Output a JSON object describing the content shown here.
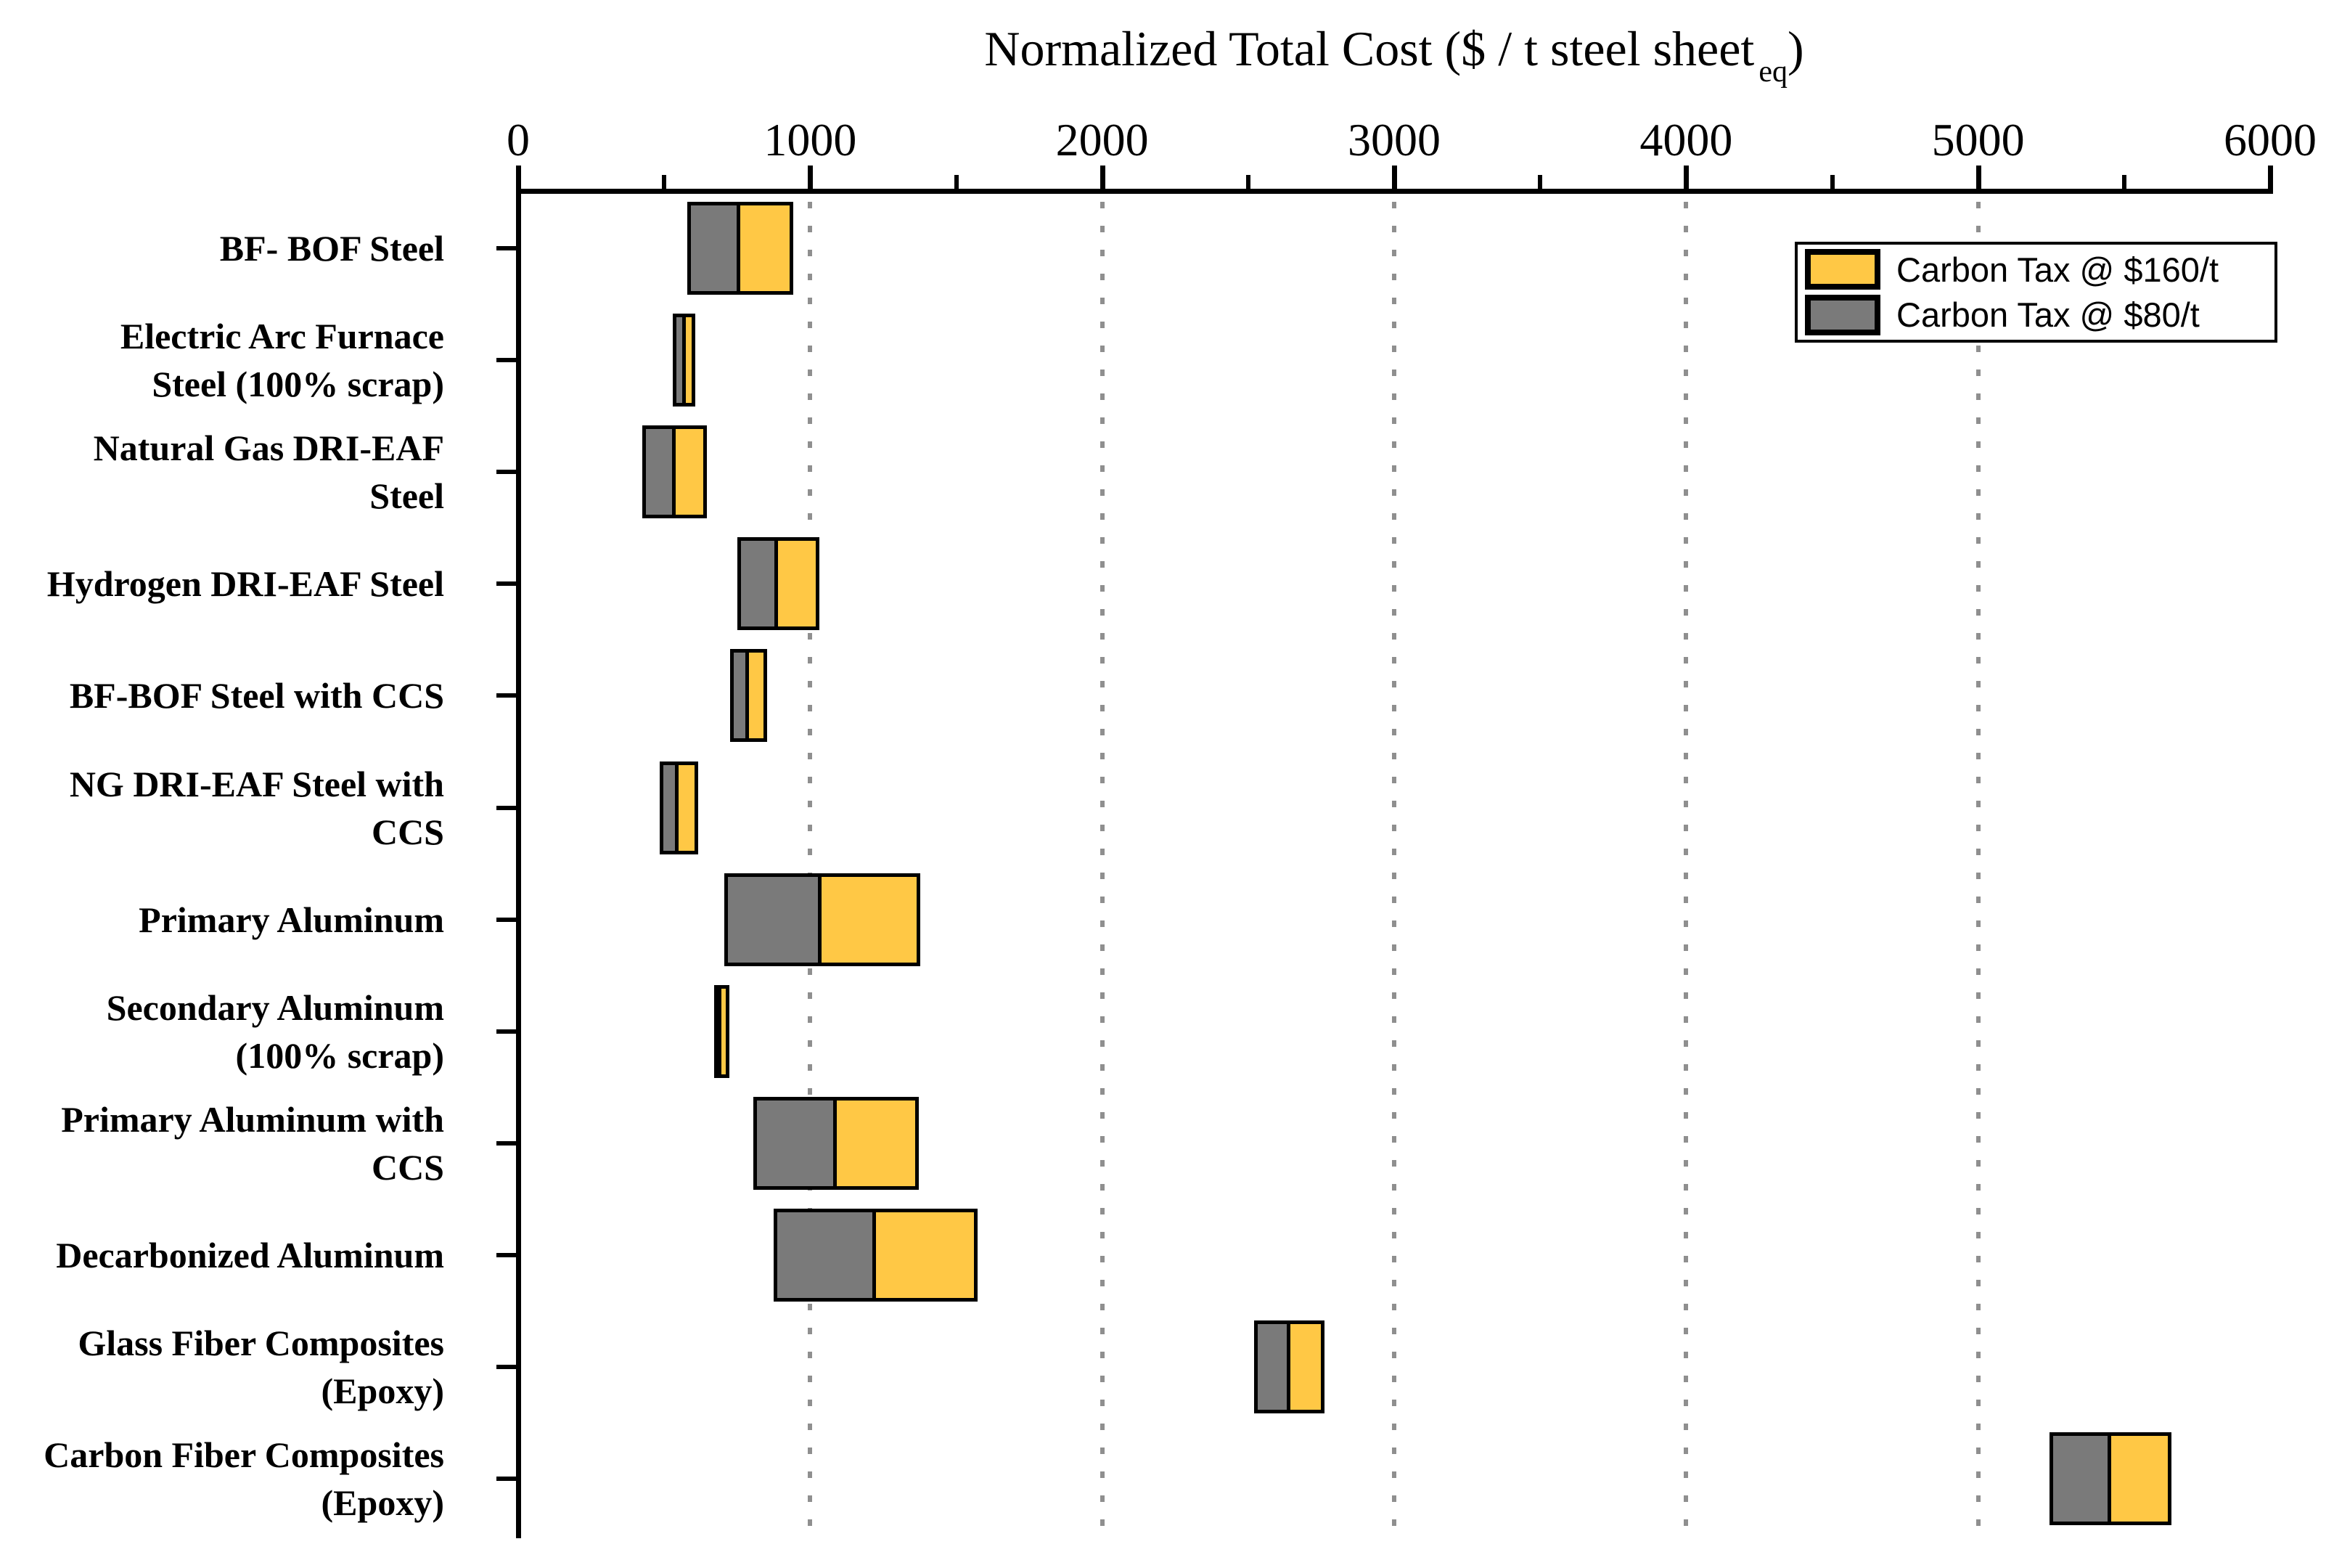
{
  "title": {
    "main": "Normalized Total Cost ($ / t steel sheet",
    "subscript": "eq",
    "suffix": ")"
  },
  "legend": {
    "items": [
      {
        "label": "Carbon Tax @ $160/t",
        "color": "#FFC845"
      },
      {
        "label": "Carbon Tax @ $80/t",
        "color": "#7A7A7A"
      }
    ]
  },
  "chart_data": {
    "type": "bar",
    "orientation": "horizontal",
    "bar_style": "floating-range",
    "title": "Normalized Total Cost ($ / t steel sheet_eq)",
    "xlabel": "Normalized Total Cost ($ / t steel sheet_eq)",
    "ylabel": "",
    "xlim": [
      0,
      6000
    ],
    "x_ticks": [
      0,
      1000,
      2000,
      3000,
      4000,
      5000,
      6000
    ],
    "x_minor_ticks": [
      500,
      1500,
      2500,
      3500,
      4500,
      5500
    ],
    "gridlines_at": [
      1000,
      2000,
      3000,
      4000,
      5000
    ],
    "grid": "vertical-dotted",
    "legend_position": "top-right",
    "series": [
      {
        "name": "Carbon Tax @ $160/t",
        "color": "#FFC845",
        "role": "cost_at_tax160"
      },
      {
        "name": "Carbon Tax @ $80/t",
        "color": "#7A7A7A",
        "role": "cost_at_tax80"
      }
    ],
    "categories": [
      "BF- BOF Steel",
      "Electric Arc Furnace Steel (100% scrap)",
      "Natural Gas DRI-EAF Steel",
      "Hydrogen DRI-EAF Steel",
      "BF-BOF Steel with CCS",
      "NG DRI-EAF Steel with CCS",
      "Primary Aluminum",
      "Secondary Aluminum (100% scrap)",
      "Primary Aluminum with CCS",
      "Decarbonized Aluminum",
      "Glass Fiber Composites (Epoxy)",
      "Carbon Fiber Composites (Epoxy)"
    ],
    "bars": [
      {
        "lines": [
          "BF- BOF Steel"
        ],
        "base": 580,
        "cost_at_tax80": 755,
        "cost_at_tax160": 935
      },
      {
        "lines": [
          "Electric Arc Furnace",
          "Steel (100% scrap)"
        ],
        "base": 530,
        "cost_at_tax80": 570,
        "cost_at_tax160": 600
      },
      {
        "lines": [
          "Natural Gas DRI-EAF",
          "Steel"
        ],
        "base": 425,
        "cost_at_tax80": 535,
        "cost_at_tax160": 640
      },
      {
        "lines": [
          "Hydrogen DRI-EAF Steel"
        ],
        "base": 750,
        "cost_at_tax80": 885,
        "cost_at_tax160": 1025
      },
      {
        "lines": [
          "BF-BOF Steel with CCS"
        ],
        "base": 725,
        "cost_at_tax80": 785,
        "cost_at_tax160": 845
      },
      {
        "lines": [
          "NG DRI-EAF Steel with",
          "CCS"
        ],
        "base": 485,
        "cost_at_tax80": 545,
        "cost_at_tax160": 610
      },
      {
        "lines": [
          "Primary Aluminum"
        ],
        "base": 705,
        "cost_at_tax80": 1035,
        "cost_at_tax160": 1370
      },
      {
        "lines": [
          "Secondary Aluminum",
          "(100% scrap)"
        ],
        "base": 670,
        "cost_at_tax80": 690,
        "cost_at_tax160": 715
      },
      {
        "lines": [
          "Primary Aluminum with",
          "CCS"
        ],
        "base": 805,
        "cost_at_tax80": 1085,
        "cost_at_tax160": 1365
      },
      {
        "lines": [
          "Decarbonized Aluminum"
        ],
        "base": 875,
        "cost_at_tax80": 1220,
        "cost_at_tax160": 1565
      },
      {
        "lines": [
          "Glass Fiber Composites",
          "(Epoxy)"
        ],
        "base": 2520,
        "cost_at_tax80": 2640,
        "cost_at_tax160": 2755
      },
      {
        "lines": [
          "Carbon Fiber Composites",
          "(Epoxy)"
        ],
        "base": 5245,
        "cost_at_tax80": 5450,
        "cost_at_tax160": 5655
      }
    ]
  }
}
